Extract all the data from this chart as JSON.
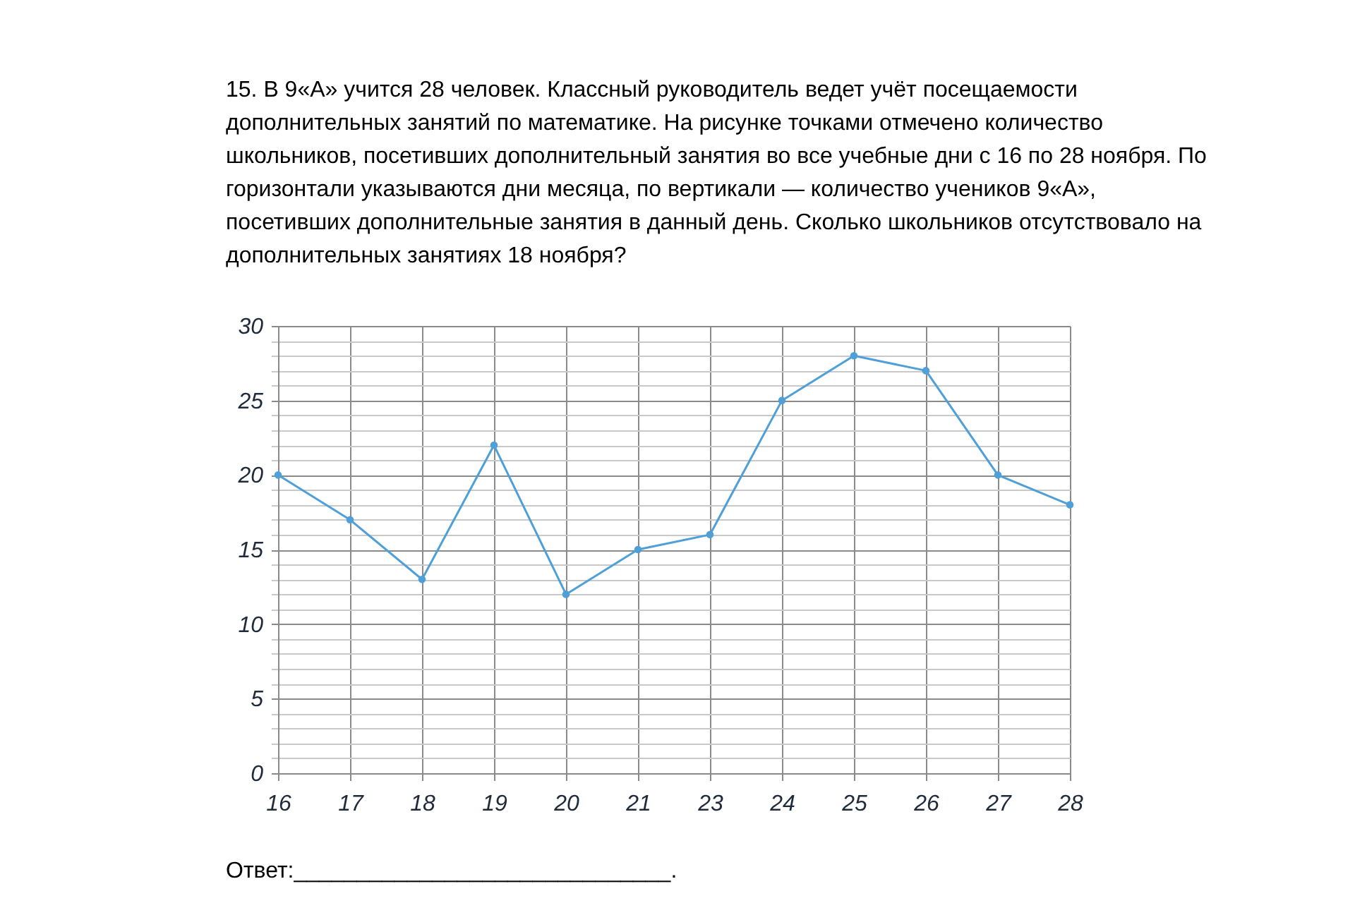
{
  "chart_data": {
    "type": "line",
    "title": "15. В 9«А» учится 28 человек. Классный руководитель ведет учёт посещаемости дополнительных занятий по математике. На рисунке точками отмечено количество школьников, посетивших дополнительный занятия во все учебные дни с 16 по 28 ноября. По горизонтали указываются дни месяца, по вертикали — количество учеников 9«А», посетивших дополнительные занятия в данный день. Сколько школьников отсутствовало на дополнительных занятиях 18 ноября?",
    "categories": [
      "16",
      "17",
      "18",
      "19",
      "20",
      "21",
      "23",
      "24",
      "25",
      "26",
      "27",
      "28"
    ],
    "series": [
      {
        "color": "#4f9fd8",
        "values": [
          20,
          17,
          13,
          22,
          12,
          15,
          16,
          25,
          28,
          27,
          20,
          18
        ]
      }
    ],
    "ylim": [
      0,
      30
    ],
    "yticks": [
      0,
      {
        "value": 1,
        "label": null
      },
      {
        "value": 2,
        "label": null
      },
      {
        "value": 3,
        "label": null
      },
      {
        "value": 4,
        "label": null
      },
      5,
      {
        "value": 6,
        "label": null
      },
      {
        "value": 7,
        "label": null
      },
      {
        "value": 8,
        "label": null
      },
      {
        "value": 9,
        "label": null
      },
      10,
      {
        "value": 11,
        "label": null
      },
      {
        "value": 12,
        "label": null
      },
      {
        "value": 13,
        "label": null
      },
      {
        "value": 14,
        "label": null
      },
      15,
      {
        "value": 16,
        "label": null
      },
      {
        "value": 17,
        "label": null
      },
      {
        "value": 18,
        "label": null
      },
      {
        "value": 19,
        "label": null
      },
      20,
      {
        "value": 21,
        "label": null
      },
      {
        "value": 22,
        "label": null
      },
      {
        "value": 23,
        "label": null
      },
      {
        "value": 24,
        "label": null
      },
      25,
      {
        "value": 26,
        "label": null
      },
      {
        "value": 27,
        "label": null
      },
      {
        "value": 28,
        "label": null
      },
      {
        "value": 29,
        "label": null
      },
      30
    ],
    "grid": true,
    "marker": "circle",
    "line_style": "solid",
    "annotations": [
      "Ответ:______________________________."
    ]
  }
}
